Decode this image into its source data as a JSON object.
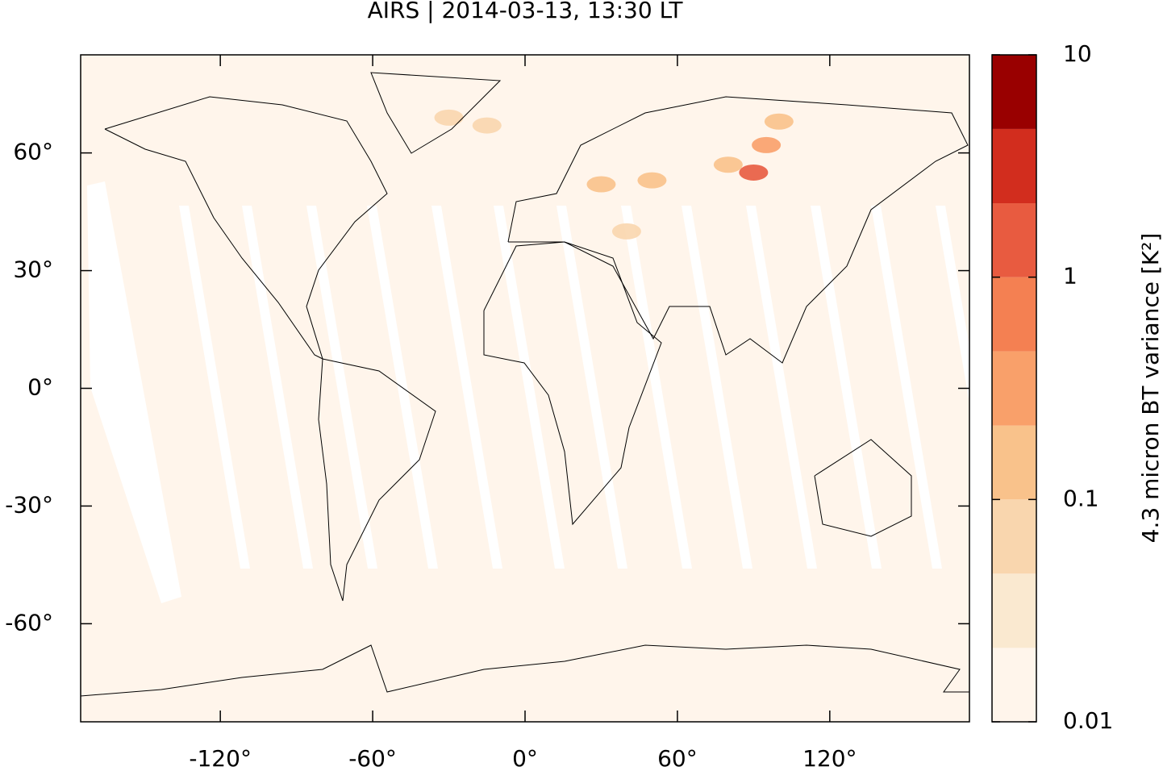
{
  "chart_data": {
    "type": "map",
    "title": "AIRS | 2014-03-13, 13:30 LT",
    "xlim": [
      -175,
      175
    ],
    "ylim": [
      -85,
      85
    ],
    "xticks": [
      {
        "value": -120,
        "label": "-120°"
      },
      {
        "value": -60,
        "label": "-60°"
      },
      {
        "value": 0,
        "label": "0°"
      },
      {
        "value": 60,
        "label": "60°"
      },
      {
        "value": 120,
        "label": "120°"
      }
    ],
    "yticks": [
      {
        "value": -60,
        "label": "-60°"
      },
      {
        "value": -30,
        "label": "-30°"
      },
      {
        "value": 0,
        "label": "0°"
      },
      {
        "value": 30,
        "label": "30°"
      },
      {
        "value": 60,
        "label": "60°"
      }
    ],
    "x": [
      90,
      95,
      80,
      100,
      50,
      30,
      -30,
      -15,
      40
    ],
    "y": [
      55,
      62,
      57,
      68,
      53,
      52,
      69,
      67,
      40
    ],
    "values": [
      2,
      0.3,
      0.2,
      0.2,
      0.12,
      0.1,
      0.08,
      0.06,
      0.06
    ],
    "colorbar": {
      "label": "4.3 micron BT variance [K²]",
      "log": true,
      "lim": [
        0.01,
        10
      ],
      "ticks": [
        0.01,
        0.1,
        1,
        10
      ],
      "levels": [
        0.01,
        0.0215,
        0.0464,
        0.1,
        0.215,
        0.464,
        1,
        2.15,
        4.64,
        10
      ],
      "colors": [
        "#fff5eb",
        "#fae9d0",
        "#f9d6ae",
        "#f9c28b",
        "#f9a06a",
        "#f48052",
        "#e85b40",
        "#d22d1e",
        "#990000"
      ]
    }
  }
}
